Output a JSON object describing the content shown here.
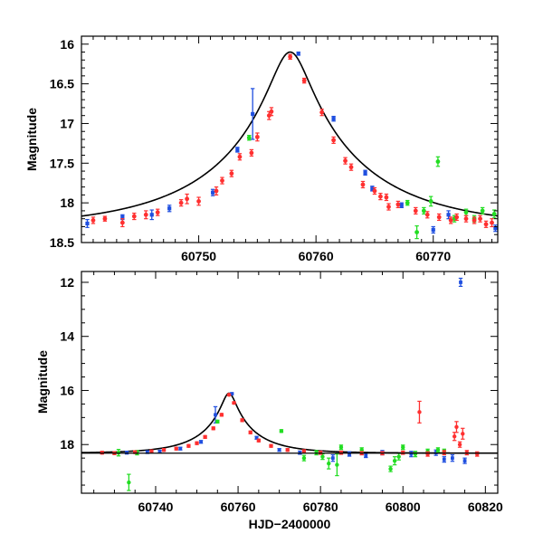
{
  "chart_data": [
    {
      "type": "scatter",
      "xlabel": "",
      "ylabel": "Magnitude",
      "xlim": [
        60740,
        60775.5
      ],
      "ylim": [
        18.5,
        15.9
      ],
      "y_inverted": true,
      "xticks": [
        60750,
        60760,
        60770
      ],
      "yticks": [
        16,
        16.5,
        17,
        17.5,
        18,
        18.5
      ],
      "ytick_labels": [
        "16",
        "16.5",
        "17",
        "17.5",
        "18",
        "18.5"
      ],
      "model_curve": {
        "t0": 60757.8,
        "peak_mag": 16.1,
        "baseline_mag": 18.32,
        "u0": 0.12,
        "tE": 13
      },
      "series": [
        {
          "color": "#1f4fe0",
          "points": [
            {
              "x": 60740.5,
              "y": 18.26,
              "err": 0.05
            },
            {
              "x": 60743.5,
              "y": 18.18,
              "err": 0.03
            },
            {
              "x": 60746.0,
              "y": 18.15,
              "err": 0.06
            },
            {
              "x": 60747.5,
              "y": 18.07,
              "err": 0.04
            },
            {
              "x": 60751.2,
              "y": 17.87,
              "err": 0.04
            },
            {
              "x": 60753.3,
              "y": 17.33,
              "err": 0.03
            },
            {
              "x": 60754.6,
              "y": 16.88,
              "err": 0.32
            },
            {
              "x": 60758.5,
              "y": 16.12,
              "err": 0.02
            },
            {
              "x": 60761.5,
              "y": 16.94,
              "err": 0.03
            },
            {
              "x": 60764.8,
              "y": 17.82,
              "err": 0.03
            },
            {
              "x": 60764.2,
              "y": 17.62,
              "err": 0.03
            },
            {
              "x": 60767.3,
              "y": 18.03,
              "err": 0.03
            },
            {
              "x": 60770.0,
              "y": 18.34,
              "err": 0.04
            },
            {
              "x": 60771.3,
              "y": 18.15,
              "err": 0.05
            },
            {
              "x": 60775.3,
              "y": 18.32,
              "err": 0.04
            }
          ]
        },
        {
          "color": "#22dd22",
          "points": [
            {
              "x": 60754.3,
              "y": 17.18,
              "err": 0.03
            },
            {
              "x": 60767.8,
              "y": 18.0,
              "err": 0.03
            },
            {
              "x": 60768.6,
              "y": 18.37,
              "err": 0.08
            },
            {
              "x": 60769.2,
              "y": 18.1,
              "err": 0.04
            },
            {
              "x": 60769.8,
              "y": 17.98,
              "err": 0.06
            },
            {
              "x": 60770.4,
              "y": 17.48,
              "err": 0.06
            },
            {
              "x": 60771.8,
              "y": 18.2,
              "err": 0.04
            },
            {
              "x": 60772.8,
              "y": 18.12,
              "err": 0.04
            },
            {
              "x": 60773.5,
              "y": 18.2,
              "err": 0.04
            },
            {
              "x": 60774.2,
              "y": 18.1,
              "err": 0.04
            },
            {
              "x": 60775.2,
              "y": 18.14,
              "err": 0.05
            }
          ]
        },
        {
          "color": "#ff3030",
          "points": [
            {
              "x": 60741.0,
              "y": 18.22,
              "err": 0.04
            },
            {
              "x": 60742.0,
              "y": 18.2,
              "err": 0.03
            },
            {
              "x": 60743.5,
              "y": 18.25,
              "err": 0.05
            },
            {
              "x": 60744.5,
              "y": 18.17,
              "err": 0.04
            },
            {
              "x": 60745.5,
              "y": 18.15,
              "err": 0.05
            },
            {
              "x": 60746.5,
              "y": 18.12,
              "err": 0.04
            },
            {
              "x": 60748.5,
              "y": 18.0,
              "err": 0.04
            },
            {
              "x": 60749.0,
              "y": 17.95,
              "err": 0.06
            },
            {
              "x": 60750.0,
              "y": 17.98,
              "err": 0.05
            },
            {
              "x": 60751.5,
              "y": 17.85,
              "err": 0.05
            },
            {
              "x": 60752.0,
              "y": 17.72,
              "err": 0.04
            },
            {
              "x": 60752.8,
              "y": 17.63,
              "err": 0.04
            },
            {
              "x": 60753.5,
              "y": 17.42,
              "err": 0.04
            },
            {
              "x": 60754.5,
              "y": 17.37,
              "err": 0.04
            },
            {
              "x": 60755.0,
              "y": 17.17,
              "err": 0.05
            },
            {
              "x": 60756.0,
              "y": 16.9,
              "err": 0.05
            },
            {
              "x": 60756.2,
              "y": 16.85,
              "err": 0.05
            },
            {
              "x": 60757.8,
              "y": 16.16,
              "err": 0.03
            },
            {
              "x": 60759.0,
              "y": 16.46,
              "err": 0.03
            },
            {
              "x": 60760.5,
              "y": 16.86,
              "err": 0.04
            },
            {
              "x": 60761.5,
              "y": 17.21,
              "err": 0.04
            },
            {
              "x": 60762.5,
              "y": 17.47,
              "err": 0.04
            },
            {
              "x": 60763.0,
              "y": 17.55,
              "err": 0.04
            },
            {
              "x": 60764.0,
              "y": 17.77,
              "err": 0.04
            },
            {
              "x": 60765.0,
              "y": 17.85,
              "err": 0.04
            },
            {
              "x": 60765.5,
              "y": 17.92,
              "err": 0.04
            },
            {
              "x": 60766.2,
              "y": 18.05,
              "err": 0.04
            },
            {
              "x": 60766.0,
              "y": 17.93,
              "err": 0.04
            },
            {
              "x": 60767.0,
              "y": 18.02,
              "err": 0.04
            },
            {
              "x": 60768.5,
              "y": 18.1,
              "err": 0.04
            },
            {
              "x": 60769.5,
              "y": 18.15,
              "err": 0.04
            },
            {
              "x": 60770.5,
              "y": 18.18,
              "err": 0.04
            },
            {
              "x": 60771.5,
              "y": 18.22,
              "err": 0.04
            },
            {
              "x": 60772.0,
              "y": 18.18,
              "err": 0.04
            },
            {
              "x": 60772.8,
              "y": 18.2,
              "err": 0.04
            },
            {
              "x": 60773.5,
              "y": 18.22,
              "err": 0.04
            },
            {
              "x": 60774.0,
              "y": 18.2,
              "err": 0.04
            },
            {
              "x": 60774.5,
              "y": 18.27,
              "err": 0.04
            },
            {
              "x": 60775.0,
              "y": 18.25,
              "err": 0.05
            }
          ]
        }
      ]
    },
    {
      "type": "scatter",
      "xlabel": "HJD−2400000",
      "ylabel": "Magnitude",
      "xlim": [
        60722,
        60823
      ],
      "ylim": [
        19.8,
        11.6
      ],
      "y_inverted": true,
      "xticks": [
        60740,
        60760,
        60780,
        60800,
        60820
      ],
      "yticks": [
        12,
        14,
        16,
        18
      ],
      "ytick_labels": [
        "12",
        "14",
        "16",
        "18"
      ],
      "baseline_mag": 18.32,
      "series": [
        {
          "color": "#1f4fe0",
          "points": [
            {
              "x": 60733.0,
              "y": 18.3,
              "err": 0.05
            },
            {
              "x": 60738.0,
              "y": 18.28,
              "err": 0.05
            },
            {
              "x": 60741.0,
              "y": 18.26,
              "err": 0.05
            },
            {
              "x": 60746.0,
              "y": 18.15,
              "err": 0.05
            },
            {
              "x": 60751.0,
              "y": 17.9,
              "err": 0.05
            },
            {
              "x": 60754.5,
              "y": 16.9,
              "err": 0.3
            },
            {
              "x": 60758.5,
              "y": 16.12,
              "err": 0.03
            },
            {
              "x": 60764.5,
              "y": 17.75,
              "err": 0.05
            },
            {
              "x": 60770.0,
              "y": 18.2,
              "err": 0.05
            },
            {
              "x": 60775.0,
              "y": 18.3,
              "err": 0.06
            },
            {
              "x": 60780.0,
              "y": 18.3,
              "err": 0.06
            },
            {
              "x": 60783.0,
              "y": 18.5,
              "err": 0.12
            },
            {
              "x": 60787.0,
              "y": 18.35,
              "err": 0.08
            },
            {
              "x": 60791.0,
              "y": 18.4,
              "err": 0.08
            },
            {
              "x": 60795.0,
              "y": 18.3,
              "err": 0.08
            },
            {
              "x": 60802.0,
              "y": 18.35,
              "err": 0.1
            },
            {
              "x": 60808.0,
              "y": 18.3,
              "err": 0.1
            },
            {
              "x": 60810.0,
              "y": 18.55,
              "err": 0.1
            },
            {
              "x": 60812.0,
              "y": 18.5,
              "err": 0.12
            },
            {
              "x": 60814.0,
              "y": 12.0,
              "err": 0.15
            },
            {
              "x": 60815.0,
              "y": 18.6,
              "err": 0.1
            }
          ]
        },
        {
          "color": "#22dd22",
          "points": [
            {
              "x": 60731.0,
              "y": 18.3,
              "err": 0.12
            },
            {
              "x": 60733.5,
              "y": 19.4,
              "err": 0.3
            },
            {
              "x": 60735.5,
              "y": 18.3,
              "err": 0.08
            },
            {
              "x": 60755.0,
              "y": 17.15,
              "err": 0.05
            },
            {
              "x": 60770.5,
              "y": 17.5,
              "err": 0.05
            },
            {
              "x": 60776.0,
              "y": 18.5,
              "err": 0.1
            },
            {
              "x": 60779.0,
              "y": 18.3,
              "err": 0.08
            },
            {
              "x": 60780.5,
              "y": 18.45,
              "err": 0.1
            },
            {
              "x": 60782.0,
              "y": 18.7,
              "err": 0.2
            },
            {
              "x": 60784.0,
              "y": 18.75,
              "err": 0.4
            },
            {
              "x": 60785.0,
              "y": 18.1,
              "err": 0.08
            },
            {
              "x": 60790.0,
              "y": 18.2,
              "err": 0.08
            },
            {
              "x": 60797.0,
              "y": 18.9,
              "err": 0.1
            },
            {
              "x": 60798.0,
              "y": 18.6,
              "err": 0.15
            },
            {
              "x": 60799.0,
              "y": 18.45,
              "err": 0.12
            },
            {
              "x": 60800.0,
              "y": 18.1,
              "err": 0.08
            },
            {
              "x": 60803.0,
              "y": 18.35,
              "err": 0.1
            },
            {
              "x": 60806.0,
              "y": 18.25,
              "err": 0.08
            },
            {
              "x": 60808.5,
              "y": 18.2,
              "err": 0.08
            },
            {
              "x": 60810.0,
              "y": 18.25,
              "err": 0.08
            }
          ]
        },
        {
          "color": "#ff3030",
          "points": [
            {
              "x": 60727.0,
              "y": 18.3,
              "err": 0.05
            },
            {
              "x": 60730.0,
              "y": 18.32,
              "err": 0.05
            },
            {
              "x": 60735.0,
              "y": 18.28,
              "err": 0.05
            },
            {
              "x": 60739.0,
              "y": 18.25,
              "err": 0.05
            },
            {
              "x": 60742.0,
              "y": 18.2,
              "err": 0.05
            },
            {
              "x": 60745.0,
              "y": 18.15,
              "err": 0.05
            },
            {
              "x": 60748.0,
              "y": 18.05,
              "err": 0.05
            },
            {
              "x": 60750.0,
              "y": 17.95,
              "err": 0.05
            },
            {
              "x": 60752.0,
              "y": 17.72,
              "err": 0.05
            },
            {
              "x": 60754.0,
              "y": 17.4,
              "err": 0.05
            },
            {
              "x": 60756.0,
              "y": 16.9,
              "err": 0.05
            },
            {
              "x": 60757.8,
              "y": 16.16,
              "err": 0.03
            },
            {
              "x": 60759.0,
              "y": 16.46,
              "err": 0.04
            },
            {
              "x": 60761.0,
              "y": 17.1,
              "err": 0.05
            },
            {
              "x": 60763.0,
              "y": 17.55,
              "err": 0.05
            },
            {
              "x": 60765.0,
              "y": 17.85,
              "err": 0.05
            },
            {
              "x": 60768.0,
              "y": 18.05,
              "err": 0.05
            },
            {
              "x": 60772.0,
              "y": 18.2,
              "err": 0.05
            },
            {
              "x": 60776.0,
              "y": 18.25,
              "err": 0.06
            },
            {
              "x": 60780.0,
              "y": 18.3,
              "err": 0.06
            },
            {
              "x": 60785.0,
              "y": 18.3,
              "err": 0.06
            },
            {
              "x": 60790.0,
              "y": 18.32,
              "err": 0.06
            },
            {
              "x": 60795.0,
              "y": 18.32,
              "err": 0.06
            },
            {
              "x": 60800.0,
              "y": 18.3,
              "err": 0.06
            },
            {
              "x": 60804.0,
              "y": 16.8,
              "err": 0.4
            },
            {
              "x": 60806.0,
              "y": 18.35,
              "err": 0.08
            },
            {
              "x": 60810.0,
              "y": 18.3,
              "err": 0.08
            },
            {
              "x": 60812.5,
              "y": 17.7,
              "err": 0.15
            },
            {
              "x": 60813.0,
              "y": 17.35,
              "err": 0.2
            },
            {
              "x": 60813.8,
              "y": 18.0,
              "err": 0.1
            },
            {
              "x": 60814.5,
              "y": 17.6,
              "err": 0.2
            },
            {
              "x": 60815.5,
              "y": 18.3,
              "err": 0.08
            },
            {
              "x": 60818.0,
              "y": 18.35,
              "err": 0.08
            }
          ]
        }
      ]
    }
  ]
}
